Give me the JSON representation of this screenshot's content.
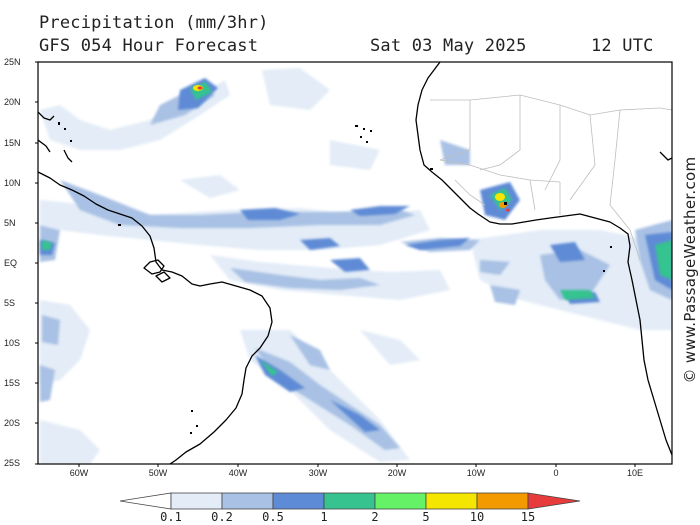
{
  "header": {
    "title": "Precipitation (mm/3hr)",
    "model": "GFS 054 Hour Forecast",
    "date": "Sat 03 May 2025",
    "time": "12 UTC"
  },
  "lat_labels": [
    "25N",
    "20N",
    "15N",
    "10N",
    "5N",
    "EQ",
    "5S",
    "10S",
    "15S",
    "20S",
    "25S"
  ],
  "lon_labels": [
    "60W",
    "50W",
    "40W",
    "30W",
    "20W",
    "10W",
    "0",
    "10E"
  ],
  "legend": {
    "labels": [
      "0.1",
      "0.2",
      "0.5",
      "1",
      "2",
      "5",
      "10",
      "15"
    ],
    "colors": [
      "#ffffff",
      "#e3ecf7",
      "#a9c1e4",
      "#5e8bd6",
      "#36c38f",
      "#66f266",
      "#f4e600",
      "#f29a00",
      "#e83c3c"
    ]
  },
  "credit": "© www.PassageWeather.com",
  "map_colors": {
    "land": "#ffffff",
    "coast": "#000000",
    "borders": "#bdbdbd",
    "frame": "#000000"
  }
}
